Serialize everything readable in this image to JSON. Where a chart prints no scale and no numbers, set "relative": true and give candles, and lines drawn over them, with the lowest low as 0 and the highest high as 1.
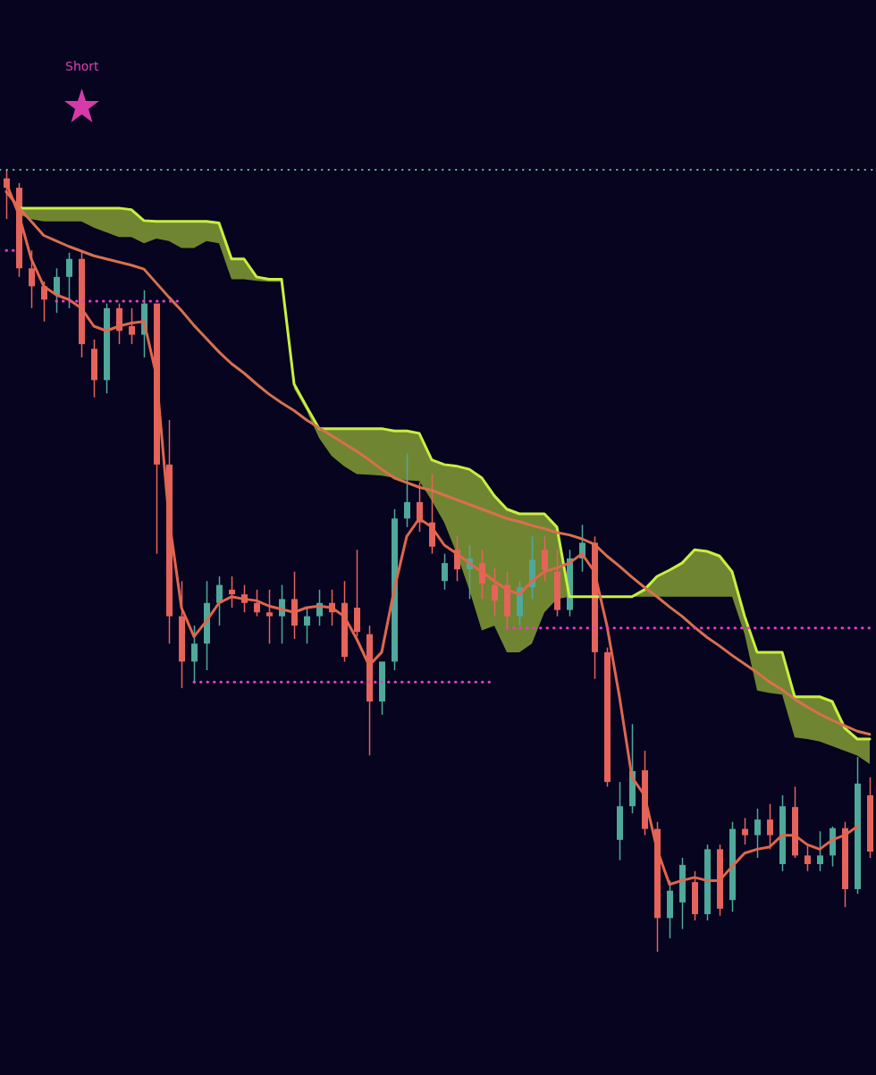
{
  "chart_data": {
    "type": "candlestick",
    "relative": true,
    "categories": [
      null,
      null,
      null,
      null,
      null,
      null,
      null,
      null,
      null,
      null,
      null,
      null,
      null,
      null,
      null,
      null,
      null,
      null,
      null,
      null,
      null,
      null,
      null,
      null,
      null,
      null,
      null,
      null,
      null,
      null,
      null,
      null,
      null,
      null,
      null,
      null,
      null,
      null,
      null,
      null,
      null,
      null,
      null,
      null,
      null,
      null,
      null,
      null,
      null,
      null,
      null,
      null,
      null,
      null,
      null,
      null,
      null,
      null,
      null,
      null,
      null,
      null,
      null,
      null,
      null,
      null,
      null,
      null,
      null,
      null
    ],
    "ohlc": [
      [
        0.989,
        1.0,
        0.937,
        0.977
      ],
      [
        0.977,
        0.983,
        0.863,
        0.874
      ],
      [
        0.874,
        0.897,
        0.823,
        0.851
      ],
      [
        0.851,
        0.857,
        0.806,
        0.834
      ],
      [
        0.84,
        0.874,
        0.817,
        0.863
      ],
      [
        0.863,
        0.894,
        0.823,
        0.886
      ],
      [
        0.886,
        0.897,
        0.76,
        0.777
      ],
      [
        0.771,
        0.783,
        0.709,
        0.731
      ],
      [
        0.731,
        0.829,
        0.714,
        0.823
      ],
      [
        0.823,
        0.829,
        0.777,
        0.794
      ],
      [
        0.8,
        0.823,
        0.777,
        0.789
      ],
      [
        0.789,
        0.846,
        0.76,
        0.829
      ],
      [
        0.829,
        0.829,
        0.509,
        0.623
      ],
      [
        0.623,
        0.68,
        0.394,
        0.429
      ],
      [
        0.429,
        0.474,
        0.337,
        0.371
      ],
      [
        0.371,
        0.417,
        0.343,
        0.394
      ],
      [
        0.394,
        0.474,
        0.36,
        0.446
      ],
      [
        0.446,
        0.48,
        0.417,
        0.469
      ],
      [
        0.463,
        0.48,
        0.44,
        0.457
      ],
      [
        0.457,
        0.469,
        0.434,
        0.446
      ],
      [
        0.446,
        0.463,
        0.429,
        0.434
      ],
      [
        0.434,
        0.463,
        0.394,
        0.429
      ],
      [
        0.429,
        0.469,
        0.394,
        0.451
      ],
      [
        0.451,
        0.486,
        0.4,
        0.417
      ],
      [
        0.417,
        0.44,
        0.394,
        0.429
      ],
      [
        0.429,
        0.463,
        0.417,
        0.446
      ],
      [
        0.446,
        0.463,
        0.417,
        0.434
      ],
      [
        0.446,
        0.474,
        0.371,
        0.377
      ],
      [
        0.44,
        0.514,
        0.403,
        0.409
      ],
      [
        0.406,
        0.417,
        0.251,
        0.32
      ],
      [
        0.32,
        0.371,
        0.303,
        0.371
      ],
      [
        0.371,
        0.566,
        0.36,
        0.554
      ],
      [
        0.554,
        0.637,
        0.543,
        0.575
      ],
      [
        0.575,
        0.6,
        0.537,
        0.549
      ],
      [
        0.549,
        0.611,
        0.509,
        0.518
      ],
      [
        0.474,
        0.509,
        0.463,
        0.497
      ],
      [
        0.514,
        0.531,
        0.474,
        0.489
      ],
      [
        0.489,
        0.52,
        0.451,
        0.503
      ],
      [
        0.497,
        0.514,
        0.451,
        0.471
      ],
      [
        0.469,
        0.491,
        0.429,
        0.449
      ],
      [
        0.469,
        0.486,
        0.414,
        0.429
      ],
      [
        0.429,
        0.474,
        0.417,
        0.466
      ],
      [
        0.466,
        0.531,
        0.451,
        0.501
      ],
      [
        0.514,
        0.531,
        0.474,
        0.488
      ],
      [
        0.486,
        0.514,
        0.429,
        0.437
      ],
      [
        0.437,
        0.514,
        0.429,
        0.503
      ],
      [
        0.503,
        0.546,
        0.486,
        0.523
      ],
      [
        0.523,
        0.531,
        0.349,
        0.383
      ],
      [
        0.383,
        0.389,
        0.211,
        0.217
      ],
      [
        0.143,
        0.217,
        0.117,
        0.186
      ],
      [
        0.186,
        0.291,
        0.177,
        0.231
      ],
      [
        0.232,
        0.257,
        0.149,
        0.157
      ],
      [
        0.157,
        0.166,
        0.0,
        0.043
      ],
      [
        0.043,
        0.091,
        0.017,
        0.078
      ],
      [
        0.063,
        0.12,
        0.029,
        0.111
      ],
      [
        0.089,
        0.103,
        0.04,
        0.048
      ],
      [
        0.048,
        0.137,
        0.04,
        0.131
      ],
      [
        0.131,
        0.137,
        0.046,
        0.055
      ],
      [
        0.066,
        0.166,
        0.051,
        0.157
      ],
      [
        0.157,
        0.171,
        0.137,
        0.149
      ],
      [
        0.149,
        0.183,
        0.12,
        0.169
      ],
      [
        0.169,
        0.189,
        0.131,
        0.149
      ],
      [
        0.112,
        0.2,
        0.103,
        0.186
      ],
      [
        0.185,
        0.211,
        0.12,
        0.123
      ],
      [
        0.123,
        0.137,
        0.103,
        0.112
      ],
      [
        0.112,
        0.154,
        0.103,
        0.123
      ],
      [
        0.123,
        0.16,
        0.109,
        0.158
      ],
      [
        0.158,
        0.166,
        0.057,
        0.08
      ],
      [
        0.08,
        0.249,
        0.074,
        0.215
      ],
      [
        0.2,
        0.223,
        0.12,
        0.128
      ]
    ],
    "colors": [
      "#e5635a",
      "#e5635a",
      "#e5635a",
      "#e5635a",
      "#4fa89a",
      "#4fa89a",
      "#e5635a",
      "#e5635a",
      "#4fa89a",
      "#e5635a",
      "#e5635a",
      "#4fa89a",
      "#e5635a",
      "#e5635a",
      "#e5635a",
      "#4fa89a",
      "#4fa89a",
      "#4fa89a",
      "#e5635a",
      "#e5635a",
      "#e5635a",
      "#e5635a",
      "#4fa89a",
      "#e5635a",
      "#4fa89a",
      "#4fa89a",
      "#e5635a",
      "#e5635a",
      "#e5635a",
      "#e5635a",
      "#4fa89a",
      "#4fa89a",
      "#4fa89a",
      "#e5635a",
      "#e5635a",
      "#4fa89a",
      "#e5635a",
      "#4fa89a",
      "#e5635a",
      "#e5635a",
      "#e5635a",
      "#4fa89a",
      "#4fa89a",
      "#e5635a",
      "#e5635a",
      "#4fa89a",
      "#4fa89a",
      "#e5635a",
      "#e5635a",
      "#4fa89a",
      "#4fa89a",
      "#e5635a",
      "#e5635a",
      "#4fa89a",
      "#4fa89a",
      "#e5635a",
      "#4fa89a",
      "#e5635a",
      "#4fa89a",
      "#e5635a",
      "#4fa89a",
      "#e5635a",
      "#4fa89a",
      "#e5635a",
      "#e5635a",
      "#4fa89a",
      "#4fa89a",
      "#e5635a",
      "#4fa89a",
      "#e5635a"
    ],
    "series": [
      {
        "type": "line",
        "color": "#c8f040",
        "values": [
          null,
          0.951,
          0.951,
          0.951,
          0.951,
          0.951,
          0.951,
          0.951,
          0.951,
          0.951,
          0.949,
          0.935,
          0.934,
          0.934,
          0.934,
          0.934,
          0.934,
          0.932,
          0.886,
          0.886,
          0.863,
          0.86,
          0.86,
          0.726,
          0.697,
          0.669,
          0.669,
          0.669,
          0.669,
          0.669,
          0.669,
          0.666,
          0.666,
          0.663,
          0.629,
          0.623,
          0.621,
          0.617,
          0.606,
          0.583,
          0.566,
          0.56,
          0.56,
          0.56,
          0.543,
          0.454,
          0.454,
          0.454,
          0.454,
          0.454,
          0.454,
          0.463,
          0.48,
          0.488,
          0.497,
          0.514,
          0.512,
          0.506,
          0.486,
          0.429,
          0.383,
          0.383,
          0.383,
          0.326,
          0.326,
          0.326,
          0.32,
          0.286,
          0.272,
          0.272
        ],
        "upper": [
          null,
          0.951,
          0.951,
          0.951,
          0.951,
          0.951,
          0.951,
          0.951,
          0.951,
          0.951,
          0.949,
          0.935,
          0.934,
          0.934,
          0.934,
          0.934,
          0.934,
          0.932,
          0.886,
          0.886,
          0.863,
          0.86,
          0.86,
          0.726,
          0.697,
          0.669,
          0.669,
          0.669,
          0.669,
          0.669,
          0.669,
          0.666,
          0.666,
          0.663,
          0.629,
          0.623,
          0.621,
          0.617,
          0.606,
          0.583,
          0.566,
          0.56,
          0.56,
          0.56,
          0.543,
          0.454,
          0.454,
          0.454,
          0.454,
          0.454,
          0.454,
          0.463,
          0.48,
          0.488,
          0.497,
          0.514,
          0.512,
          0.506,
          0.486,
          0.429,
          0.383,
          0.383,
          0.383,
          0.326,
          0.326,
          0.326,
          0.32,
          0.286,
          0.272,
          0.272
        ],
        "lower": [
          null,
          0.943,
          0.937,
          0.934,
          0.934,
          0.934,
          0.934,
          0.926,
          0.92,
          0.914,
          0.914,
          0.906,
          0.912,
          0.909,
          0.9,
          0.9,
          0.909,
          0.906,
          0.86,
          0.86,
          0.858,
          0.857,
          0.857,
          0.72,
          0.692,
          0.657,
          0.634,
          0.621,
          0.611,
          0.61,
          0.609,
          0.606,
          0.603,
          0.602,
          0.577,
          0.549,
          0.509,
          0.463,
          0.411,
          0.417,
          0.383,
          0.383,
          0.394,
          0.434,
          0.451,
          0.454,
          0.454,
          0.454,
          0.454,
          0.454,
          0.454,
          0.454,
          0.454,
          0.454,
          0.454,
          0.454,
          0.454,
          0.454,
          0.454,
          0.406,
          0.334,
          0.331,
          0.329,
          0.274,
          0.272,
          0.269,
          0.263,
          0.257,
          0.251,
          0.24
        ]
      },
      {
        "type": "line",
        "color": "#d8704f",
        "values": [
          0.972,
          0.952,
          0.934,
          0.916,
          0.909,
          0.902,
          0.896,
          0.89,
          0.886,
          0.882,
          0.878,
          0.873,
          0.855,
          0.837,
          0.82,
          0.801,
          0.784,
          0.767,
          0.752,
          0.74,
          0.726,
          0.713,
          0.702,
          0.692,
          0.68,
          0.67,
          0.66,
          0.65,
          0.64,
          0.629,
          0.617,
          0.606,
          0.6,
          0.594,
          0.59,
          0.584,
          0.578,
          0.572,
          0.566,
          0.56,
          0.554,
          0.55,
          0.545,
          0.541,
          0.536,
          0.533,
          0.528,
          0.521,
          0.506,
          0.493,
          0.479,
          0.466,
          0.454,
          0.441,
          0.429,
          0.415,
          0.402,
          0.391,
          0.379,
          0.368,
          0.357,
          0.345,
          0.335,
          0.323,
          0.313,
          0.304,
          0.296,
          0.289,
          0.282,
          0.278
        ]
      },
      {
        "type": "line",
        "color": "#e0664e",
        "values": [
          0.983,
          0.943,
          0.886,
          0.851,
          0.84,
          0.834,
          0.823,
          0.8,
          0.794,
          0.8,
          0.804,
          0.806,
          0.737,
          0.554,
          0.44,
          0.403,
          0.423,
          0.446,
          0.454,
          0.451,
          0.449,
          0.442,
          0.438,
          0.434,
          0.44,
          0.442,
          0.44,
          0.429,
          0.4,
          0.366,
          0.383,
          0.463,
          0.531,
          0.554,
          0.543,
          0.52,
          0.509,
          0.497,
          0.486,
          0.474,
          0.463,
          0.457,
          0.474,
          0.486,
          0.491,
          0.497,
          0.509,
          0.486,
          0.417,
          0.326,
          0.223,
          0.2,
          0.131,
          0.086,
          0.091,
          0.095,
          0.091,
          0.091,
          0.109,
          0.126,
          0.131,
          0.134,
          0.149,
          0.149,
          0.137,
          0.131,
          0.143,
          0.149,
          0.16,
          null
        ]
      },
      {
        "type": "line",
        "color": "#e83fc0",
        "line_style": "dotted",
        "values": [
          0.897,
          0.897,
          null,
          null,
          null,
          null,
          null,
          null,
          null,
          null,
          null,
          null,
          null,
          null,
          null,
          null,
          null,
          null,
          null,
          null,
          null,
          null,
          null,
          null,
          null,
          null,
          null,
          null,
          null,
          null,
          null,
          null,
          null,
          null,
          null,
          null,
          null,
          null,
          null,
          null,
          null,
          null,
          null,
          null,
          null,
          null,
          null,
          null,
          null,
          null,
          null,
          null,
          null,
          null,
          null,
          null,
          null,
          null,
          null,
          null,
          null,
          null,
          null,
          null,
          null,
          null,
          null,
          null,
          null,
          null
        ]
      },
      {
        "type": "line",
        "color": "#e83fc0",
        "line_style": "dotted",
        "values": [
          null,
          null,
          null,
          null,
          0.832,
          0.832,
          0.832,
          0.832,
          0.832,
          0.832,
          0.832,
          0.832,
          0.832,
          0.832,
          0.832,
          null,
          null,
          null,
          null,
          null,
          null,
          null,
          null,
          null,
          null,
          null,
          null,
          null,
          null,
          null,
          null,
          null,
          null,
          null,
          null,
          null,
          null,
          null,
          null,
          null,
          null,
          null,
          null,
          null,
          null,
          null,
          null,
          null,
          null,
          null,
          null,
          null,
          null,
          null,
          null,
          null,
          null,
          null,
          null,
          null,
          null,
          null,
          null,
          null,
          null,
          null,
          null,
          null,
          null,
          null
        ]
      },
      {
        "type": "line",
        "color": "#e83fc0",
        "line_style": "dotted",
        "values": [
          null,
          null,
          null,
          null,
          null,
          null,
          null,
          null,
          null,
          null,
          null,
          null,
          null,
          null,
          null,
          0.345,
          0.345,
          0.345,
          0.345,
          0.345,
          0.345,
          0.345,
          0.345,
          0.345,
          0.345,
          0.345,
          0.345,
          0.345,
          0.345,
          0.345,
          0.345,
          0.345,
          0.345,
          0.345,
          0.345,
          0.345,
          0.345,
          0.345,
          0.345,
          0.345,
          null,
          null,
          null,
          null,
          null,
          null,
          null,
          null,
          null,
          null,
          null,
          null,
          null,
          null,
          null,
          null,
          null,
          null,
          null,
          null,
          null,
          null,
          null,
          null,
          null,
          null,
          null,
          null,
          null,
          null
        ]
      },
      {
        "type": "line",
        "color": "#e83fc0",
        "line_style": "dotted",
        "values": [
          null,
          null,
          null,
          null,
          null,
          null,
          null,
          null,
          null,
          null,
          null,
          null,
          null,
          null,
          null,
          null,
          null,
          null,
          null,
          null,
          null,
          null,
          null,
          null,
          null,
          null,
          null,
          null,
          null,
          null,
          null,
          null,
          null,
          null,
          null,
          null,
          null,
          null,
          null,
          null,
          0.414,
          0.414,
          0.414,
          0.414,
          0.414,
          0.414,
          0.414,
          0.414,
          0.414,
          0.414,
          0.414,
          0.414,
          0.414,
          0.414,
          0.414,
          0.414,
          0.414,
          0.414,
          0.414,
          0.414,
          0.414,
          0.414,
          0.414,
          0.414,
          0.414,
          0.414,
          0.414,
          0.414,
          0.414,
          0.414
        ]
      }
    ],
    "ref_lines": [
      {
        "axis": "y",
        "value": 1.0,
        "color": "#6fbf8a",
        "line_style": "dotted"
      }
    ],
    "annotations": [
      "Short"
    ]
  }
}
